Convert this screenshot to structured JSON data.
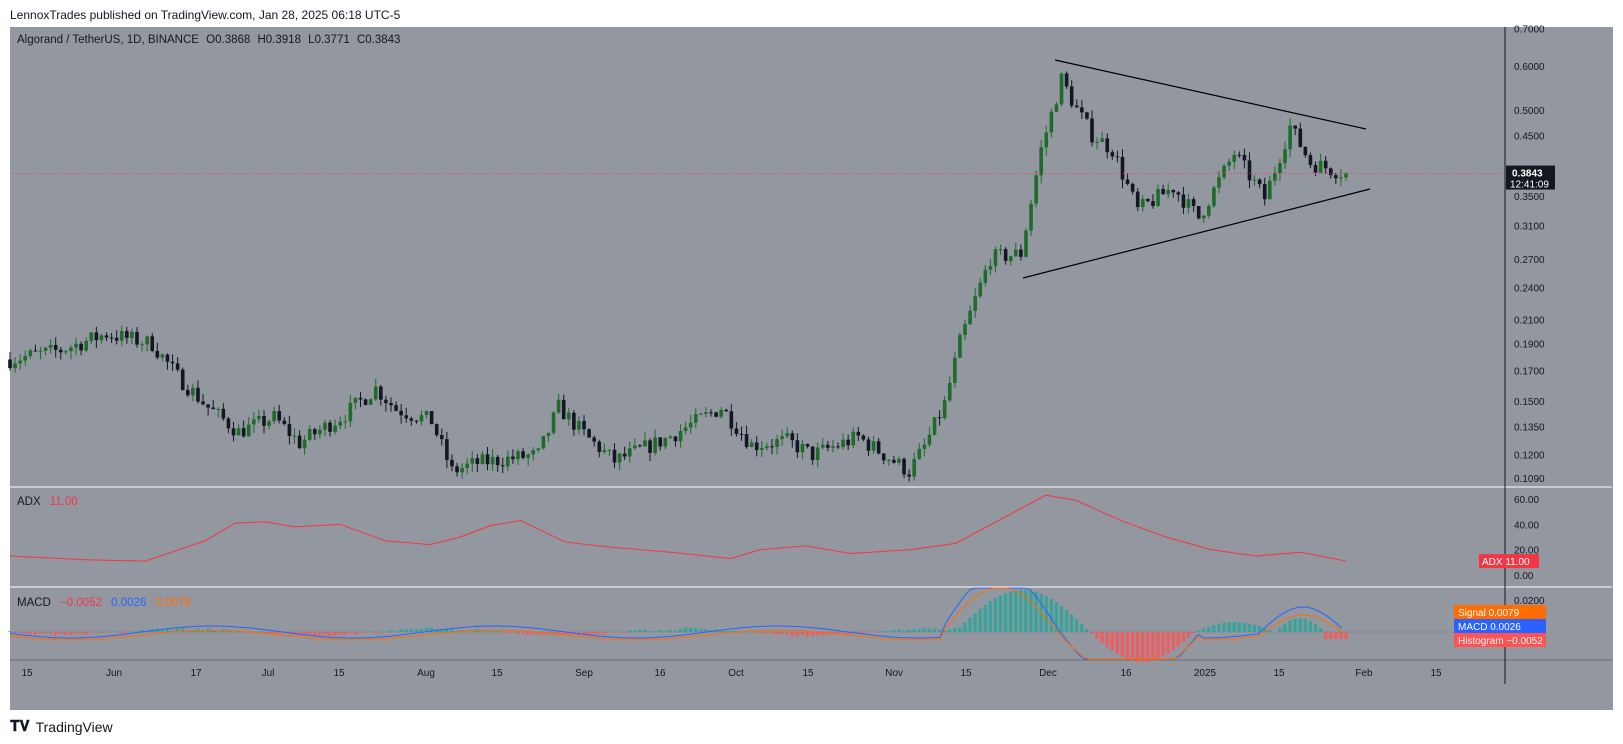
{
  "header": {
    "published": "LennoxTrades published on TradingView.com, Jan 28, 2025 06:18 UTC-5"
  },
  "legend": {
    "symbol": "Algorand / TetherUS, 1D, BINANCE",
    "o": "O0.3868",
    "h": "H0.3918",
    "l": "L0.3771",
    "c": "C0.3843"
  },
  "adx_legend": {
    "name": "ADX",
    "value": "11.00"
  },
  "macd_legend": {
    "name": "MACD",
    "hist": "−0.0052",
    "macd": "0.0026",
    "signal": "0.0079"
  },
  "footer": {
    "brand": "TradingView"
  },
  "colors": {
    "background": "#93979f",
    "up": "#1e6b2b",
    "down": "#131722",
    "adx": "#f23645",
    "macd": "#2962ff",
    "signal": "#ff6d00",
    "hist_pos": "#26a69a",
    "hist_neg": "#ff5252"
  },
  "chart_data": [
    {
      "type": "candlestick",
      "title": "Algorand / TetherUS, 1D, BINANCE",
      "scale": "log",
      "ylim": [
        0.105,
        0.705
      ],
      "y_ticks": [
        "0.7000",
        "0.6000",
        "0.5000",
        "0.4500",
        "0.3500",
        "0.3100",
        "0.2700",
        "0.2400",
        "0.2100",
        "0.1900",
        "0.1700",
        "0.1500",
        "0.1350",
        "0.1200",
        "0.1090"
      ],
      "x_ticks": [
        "15",
        "Jun",
        "17",
        "Jul",
        "15",
        "Aug",
        "15",
        "Sep",
        "16",
        "Oct",
        "15",
        "Nov",
        "15",
        "Dec",
        "16",
        "2025",
        "15",
        "Feb",
        "15"
      ],
      "last_price": "0.3843",
      "countdown": "12:41:09",
      "close_series": [
        {
          "date": "2024-05-10",
          "close": 0.178
        },
        {
          "date": "2024-05-20",
          "close": 0.185
        },
        {
          "date": "2024-05-29",
          "close": 0.198
        },
        {
          "date": "2024-06-07",
          "close": 0.19
        },
        {
          "date": "2024-06-12",
          "close": 0.166
        },
        {
          "date": "2024-06-18",
          "close": 0.146
        },
        {
          "date": "2024-06-24",
          "close": 0.132
        },
        {
          "date": "2024-07-01",
          "close": 0.14
        },
        {
          "date": "2024-07-06",
          "close": 0.126
        },
        {
          "date": "2024-07-15",
          "close": 0.142
        },
        {
          "date": "2024-07-21",
          "close": 0.158
        },
        {
          "date": "2024-07-25",
          "close": 0.145
        },
        {
          "date": "2024-08-01",
          "close": 0.138
        },
        {
          "date": "2024-08-05",
          "close": 0.112
        },
        {
          "date": "2024-08-10",
          "close": 0.116
        },
        {
          "date": "2024-08-22",
          "close": 0.12
        },
        {
          "date": "2024-08-26",
          "close": 0.146
        },
        {
          "date": "2024-09-01",
          "close": 0.128
        },
        {
          "date": "2024-09-06",
          "close": 0.117
        },
        {
          "date": "2024-09-16",
          "close": 0.128
        },
        {
          "date": "2024-09-27",
          "close": 0.146
        },
        {
          "date": "2024-10-03",
          "close": 0.125
        },
        {
          "date": "2024-10-10",
          "close": 0.127
        },
        {
          "date": "2024-10-15",
          "close": 0.12
        },
        {
          "date": "2024-10-24",
          "close": 0.129
        },
        {
          "date": "2024-11-03",
          "close": 0.112
        },
        {
          "date": "2024-11-06",
          "close": 0.124
        },
        {
          "date": "2024-11-10",
          "close": 0.148
        },
        {
          "date": "2024-11-13",
          "close": 0.191
        },
        {
          "date": "2024-11-16",
          "close": 0.228
        },
        {
          "date": "2024-11-19",
          "close": 0.271
        },
        {
          "date": "2024-11-25",
          "close": 0.276
        },
        {
          "date": "2024-11-29",
          "close": 0.425
        },
        {
          "date": "2024-12-03",
          "close": 0.568
        },
        {
          "date": "2024-12-06",
          "close": 0.501
        },
        {
          "date": "2024-12-09",
          "close": 0.452
        },
        {
          "date": "2024-12-13",
          "close": 0.425
        },
        {
          "date": "2024-12-18",
          "close": 0.33
        },
        {
          "date": "2024-12-25",
          "close": 0.363
        },
        {
          "date": "2024-12-30",
          "close": 0.32
        },
        {
          "date": "2025-01-06",
          "close": 0.418
        },
        {
          "date": "2025-01-12",
          "close": 0.347
        },
        {
          "date": "2025-01-17",
          "close": 0.467
        },
        {
          "date": "2025-01-21",
          "close": 0.402
        },
        {
          "date": "2025-01-28",
          "close": 0.3843
        }
      ],
      "annotations": [
        "symmetrical triangle trendlines"
      ]
    },
    {
      "type": "line",
      "title": "ADX",
      "ylim": [
        0,
        60
      ],
      "y_ticks": [
        "60.00",
        "40.00",
        "20.00",
        "0.00"
      ],
      "current": "11.00",
      "series": [
        {
          "name": "ADX",
          "values": [
            [
              0.0,
              15
            ],
            [
              0.05,
              12
            ],
            [
              0.09,
              11
            ],
            [
              0.13,
              27
            ],
            [
              0.15,
              41
            ],
            [
              0.17,
              42
            ],
            [
              0.19,
              38
            ],
            [
              0.22,
              40
            ],
            [
              0.25,
              27
            ],
            [
              0.28,
              24
            ],
            [
              0.3,
              30
            ],
            [
              0.32,
              39
            ],
            [
              0.34,
              43
            ],
            [
              0.37,
              26
            ],
            [
              0.4,
              22
            ],
            [
              0.44,
              18
            ],
            [
              0.48,
              13
            ],
            [
              0.5,
              20
            ],
            [
              0.53,
              23
            ],
            [
              0.56,
              17
            ],
            [
              0.6,
              20
            ],
            [
              0.63,
              25
            ],
            [
              0.66,
              44
            ],
            [
              0.69,
              63
            ],
            [
              0.71,
              59
            ],
            [
              0.74,
              43
            ],
            [
              0.77,
              30
            ],
            [
              0.8,
              20
            ],
            [
              0.83,
              15
            ],
            [
              0.86,
              18
            ],
            [
              0.89,
              11
            ]
          ]
        }
      ]
    },
    {
      "type": "line",
      "title": "MACD",
      "ylim": [
        -0.025,
        0.025
      ],
      "y_ticks": [
        "0.0200"
      ],
      "series": [
        {
          "name": "Signal",
          "current": "0.0079"
        },
        {
          "name": "MACD",
          "current": "0.0026"
        },
        {
          "name": "Histogram",
          "current": "−0.0052"
        }
      ]
    }
  ]
}
